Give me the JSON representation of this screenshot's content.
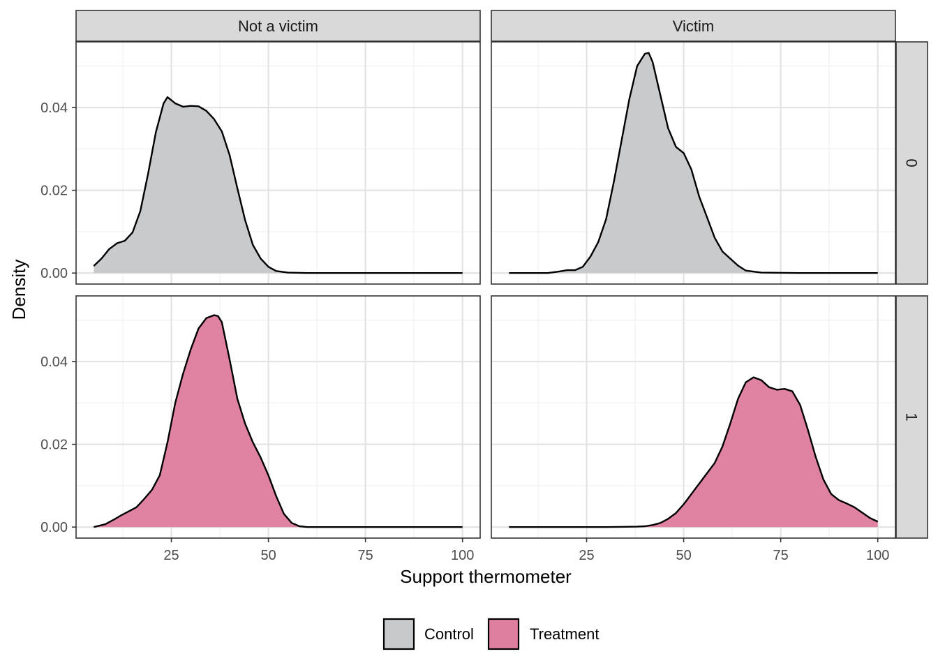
{
  "chart_data": {
    "type": "area",
    "subtype": "density-facet-grid",
    "xlabel": "Support thermometer",
    "ylabel": "Density",
    "xlim": [
      0,
      100
    ],
    "ylim": [
      0,
      0.055
    ],
    "x_ticks": [
      25,
      50,
      75,
      100
    ],
    "y_ticks": [
      0.0,
      0.02,
      0.04
    ],
    "x_tick_labels": [
      "25",
      "50",
      "75",
      "100"
    ],
    "y_tick_labels": [
      "0.00",
      "0.02",
      "0.04"
    ],
    "column_facets": [
      "Not a victim",
      "Victim"
    ],
    "row_facets": [
      "0",
      "1"
    ],
    "grid": true,
    "legend": {
      "position": "bottom",
      "entries": [
        {
          "label": "Control",
          "color": "#c8c9cb"
        },
        {
          "label": "Treatment",
          "color": "#df7fa0"
        }
      ]
    },
    "panels": [
      {
        "col": "Not a victim",
        "row": "0",
        "series": "Control",
        "x": [
          5,
          7,
          9,
          11,
          13,
          15,
          17,
          19,
          21,
          23,
          24,
          26,
          28,
          30,
          32,
          34,
          36,
          38,
          40,
          42,
          44,
          46,
          48,
          50,
          52,
          55,
          60,
          70,
          80,
          90,
          100
        ],
        "y": [
          0.0017,
          0.0035,
          0.0058,
          0.0072,
          0.0078,
          0.0098,
          0.015,
          0.024,
          0.034,
          0.041,
          0.0425,
          0.041,
          0.0402,
          0.0404,
          0.0403,
          0.0392,
          0.0372,
          0.0342,
          0.0285,
          0.0205,
          0.0128,
          0.0068,
          0.0035,
          0.0015,
          0.0005,
          0.0001,
          0.0,
          0.0,
          0.0,
          0.0,
          0.0
        ]
      },
      {
        "col": "Victim",
        "row": "0",
        "series": "Control",
        "x": [
          5,
          10,
          15,
          18,
          20,
          22,
          24,
          26,
          28,
          30,
          32,
          34,
          36,
          38,
          40,
          41,
          42,
          44,
          46,
          48,
          50,
          52,
          54,
          56,
          58,
          60,
          62,
          64,
          66,
          70,
          80,
          90,
          100
        ],
        "y": [
          0.0,
          0.0,
          0.0,
          0.0004,
          0.0007,
          0.0007,
          0.0015,
          0.004,
          0.0075,
          0.013,
          0.022,
          0.032,
          0.042,
          0.05,
          0.053,
          0.0532,
          0.051,
          0.043,
          0.035,
          0.0305,
          0.029,
          0.025,
          0.0185,
          0.0135,
          0.0085,
          0.0052,
          0.0035,
          0.0018,
          0.0006,
          0.0001,
          0.0,
          0.0,
          0.0
        ]
      },
      {
        "col": "Not a victim",
        "row": "1",
        "series": "Treatment",
        "x": [
          5,
          8,
          10,
          12,
          14,
          16,
          18,
          20,
          22,
          24,
          26,
          28,
          30,
          32,
          34,
          36,
          37,
          38,
          40,
          42,
          44,
          46,
          48,
          50,
          52,
          54,
          56,
          58,
          60,
          70,
          80,
          90,
          100
        ],
        "y": [
          0.0,
          0.0007,
          0.0017,
          0.0028,
          0.0038,
          0.0048,
          0.0068,
          0.009,
          0.0125,
          0.0205,
          0.03,
          0.037,
          0.043,
          0.048,
          0.0505,
          0.0512,
          0.051,
          0.0495,
          0.0405,
          0.031,
          0.025,
          0.0205,
          0.0168,
          0.0125,
          0.0075,
          0.0032,
          0.001,
          0.0002,
          0.0,
          0.0,
          0.0,
          0.0,
          0.0
        ]
      },
      {
        "col": "Victim",
        "row": "1",
        "series": "Treatment",
        "x": [
          5,
          20,
          30,
          38,
          40,
          42,
          44,
          46,
          48,
          50,
          52,
          54,
          56,
          58,
          60,
          62,
          64,
          66,
          68,
          70,
          72,
          74,
          76,
          78,
          80,
          82,
          84,
          86,
          88,
          90,
          92,
          94,
          96,
          98,
          100
        ],
        "y": [
          0.0,
          0.0,
          0.0,
          0.0001,
          0.0002,
          0.0005,
          0.001,
          0.002,
          0.0034,
          0.0055,
          0.008,
          0.0105,
          0.013,
          0.0155,
          0.0195,
          0.025,
          0.031,
          0.035,
          0.0362,
          0.0355,
          0.0338,
          0.0332,
          0.0334,
          0.0328,
          0.0295,
          0.0235,
          0.017,
          0.0115,
          0.008,
          0.0065,
          0.0057,
          0.0048,
          0.0035,
          0.0022,
          0.0013
        ]
      }
    ]
  }
}
